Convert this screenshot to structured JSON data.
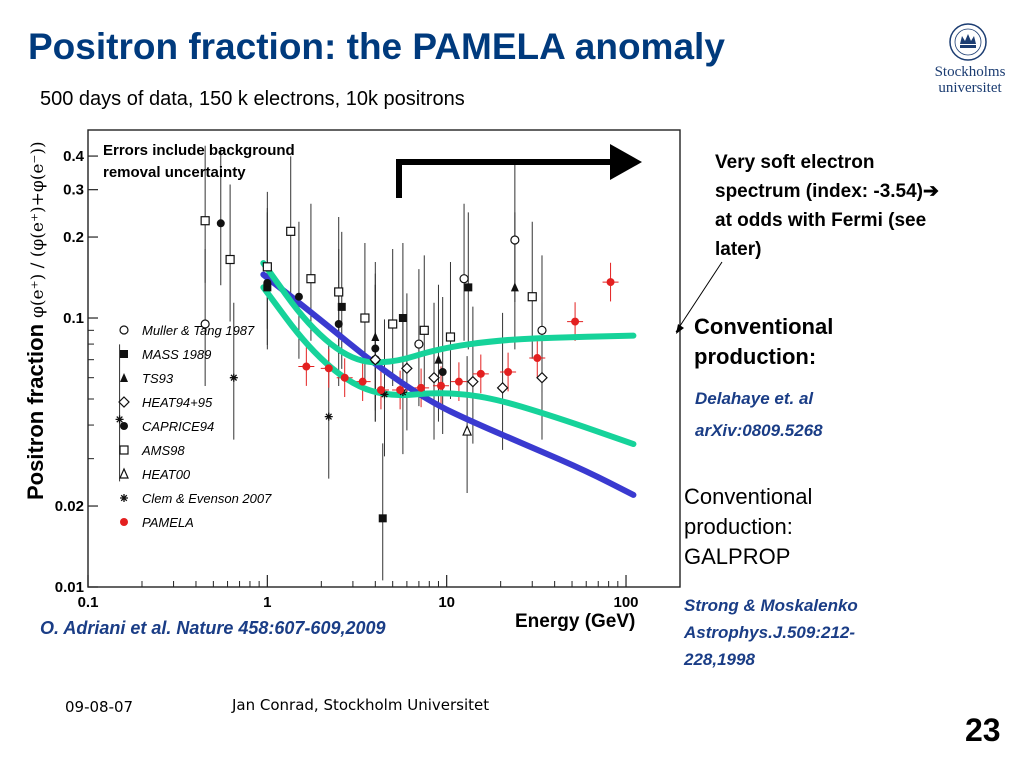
{
  "slide": {
    "title": "Positron fraction: the PAMELA anomaly",
    "subtitle": "500 days of data, 150 k electrons, 10k positrons",
    "logo_line1": "Stockholms",
    "logo_line2": "universitet",
    "annotations": {
      "errors_note": "Errors include background removal uncertainty",
      "soft_spectrum_note": "Very soft electron spectrum (index: -3.54)➔ at odds with Fermi (see later)",
      "conventional_1": "Conventional production:",
      "ref_1a": "Delahaye et. al",
      "ref_1b": "arXiv:0809.5268",
      "conventional_2": "Conventional production: GALPROP",
      "ref_2": "Strong & Moskalenko Astrophys.J.509:212-228,1998"
    },
    "citation": "O. Adriani et al. Nature 458:607-609,2009",
    "footer_date": "09-08-07",
    "footer_author": "Jan Conrad, Stockholm Universitet",
    "slide_number": "23",
    "colors": {
      "title": "#003a7d",
      "reference_text": "#1a3d86",
      "galprop_curve": "#3a3ad0",
      "delahaye_curves": "#16d39a",
      "pamela_points": "#e32020"
    }
  },
  "chart_data": {
    "type": "scatter",
    "xlabel": "Energy (GeV)",
    "ylabel": "Positron fraction",
    "ylabel_formula": "φ(e⁺) / (φ(e⁺)+φ(e⁻))",
    "x_scale": "log",
    "y_scale": "log",
    "xlim": [
      0.1,
      200
    ],
    "ylim": [
      0.01,
      0.5
    ],
    "x_ticks": [
      0.1,
      1,
      10,
      100
    ],
    "x_tick_labels": [
      "0.1",
      "1",
      "10",
      "100"
    ],
    "y_ticks": [
      0.01,
      0.02,
      0.1,
      0.2,
      0.3,
      0.4
    ],
    "y_tick_labels": [
      "0.01",
      "0.02",
      "0.1",
      "0.2",
      "0.3",
      "0.4"
    ],
    "legend_position": "left",
    "series": [
      {
        "name": "Muller & Tang 1987",
        "marker": "circle-open",
        "points": [
          [
            0.45,
            0.095
          ],
          [
            4.0,
            0.07
          ],
          [
            7.0,
            0.08
          ],
          [
            12.5,
            0.14
          ],
          [
            24.0,
            0.195
          ],
          [
            34.0,
            0.09
          ]
        ]
      },
      {
        "name": "MASS 1989",
        "marker": "square-filled",
        "points": [
          [
            1.0,
            0.13
          ],
          [
            2.6,
            0.11
          ],
          [
            4.4,
            0.018
          ],
          [
            5.7,
            0.1
          ],
          [
            13.2,
            0.13
          ]
        ]
      },
      {
        "name": "TS93",
        "marker": "triangle-filled",
        "points": [
          [
            4.0,
            0.085
          ],
          [
            9.0,
            0.07
          ],
          [
            24.0,
            0.13
          ]
        ]
      },
      {
        "name": "HEAT94+95",
        "marker": "diamond-open",
        "points": [
          [
            4.0,
            0.07
          ],
          [
            6.0,
            0.065
          ],
          [
            8.5,
            0.06
          ],
          [
            14.0,
            0.058
          ],
          [
            20.5,
            0.055
          ],
          [
            34.0,
            0.06
          ]
        ]
      },
      {
        "name": "CAPRICE94",
        "marker": "circle-filled",
        "points": [
          [
            0.55,
            0.225
          ],
          [
            1.0,
            0.135
          ],
          [
            1.5,
            0.12
          ],
          [
            2.5,
            0.095
          ],
          [
            4.0,
            0.077
          ],
          [
            9.5,
            0.063
          ]
        ]
      },
      {
        "name": "AMS98",
        "marker": "square-open",
        "points": [
          [
            0.45,
            0.23
          ],
          [
            0.62,
            0.165
          ],
          [
            1.0,
            0.155
          ],
          [
            1.35,
            0.21
          ],
          [
            1.75,
            0.14
          ],
          [
            2.5,
            0.125
          ],
          [
            3.5,
            0.1
          ],
          [
            5.0,
            0.095
          ],
          [
            7.5,
            0.09
          ],
          [
            10.5,
            0.085
          ],
          [
            30.0,
            0.12
          ]
        ]
      },
      {
        "name": "HEAT00",
        "marker": "triangle-open",
        "points": [
          [
            13.0,
            0.038
          ]
        ]
      },
      {
        "name": "Clem & Evenson 2007",
        "marker": "star",
        "points": [
          [
            0.15,
            0.042
          ],
          [
            0.65,
            0.06
          ],
          [
            2.2,
            0.043
          ],
          [
            4.5,
            0.052
          ],
          [
            5.7,
            0.053
          ]
        ]
      },
      {
        "name": "PAMELA",
        "marker": "circle-red",
        "points": [
          [
            1.65,
            0.066
          ],
          [
            2.2,
            0.065
          ],
          [
            2.7,
            0.06
          ],
          [
            3.4,
            0.058
          ],
          [
            4.3,
            0.054
          ],
          [
            5.5,
            0.054
          ],
          [
            7.2,
            0.055
          ],
          [
            9.3,
            0.056
          ],
          [
            11.7,
            0.058
          ],
          [
            15.5,
            0.062
          ],
          [
            22.0,
            0.063
          ],
          [
            32.0,
            0.071
          ],
          [
            52.0,
            0.097
          ],
          [
            82.0,
            0.136
          ]
        ]
      }
    ],
    "curves": [
      {
        "model": "GALPROP",
        "points": [
          [
            0.95,
            0.145
          ],
          [
            2.0,
            0.098
          ],
          [
            4.0,
            0.067
          ],
          [
            8.0,
            0.049
          ],
          [
            14.0,
            0.041
          ],
          [
            30.0,
            0.033
          ],
          [
            60.0,
            0.027
          ],
          [
            110.0,
            0.022
          ]
        ]
      },
      {
        "model": "Delahaye upper",
        "points": [
          [
            0.95,
            0.16
          ],
          [
            1.7,
            0.093
          ],
          [
            3.0,
            0.069
          ],
          [
            5.0,
            0.068
          ],
          [
            9.0,
            0.077
          ],
          [
            20.0,
            0.083
          ],
          [
            50.0,
            0.085
          ],
          [
            110.0,
            0.086
          ]
        ]
      },
      {
        "model": "Delahaye lower",
        "points": [
          [
            0.95,
            0.13
          ],
          [
            1.7,
            0.077
          ],
          [
            3.0,
            0.056
          ],
          [
            5.0,
            0.051
          ],
          [
            9.0,
            0.053
          ],
          [
            17.0,
            0.051
          ],
          [
            40.0,
            0.043
          ],
          [
            110.0,
            0.034
          ]
        ]
      }
    ]
  }
}
